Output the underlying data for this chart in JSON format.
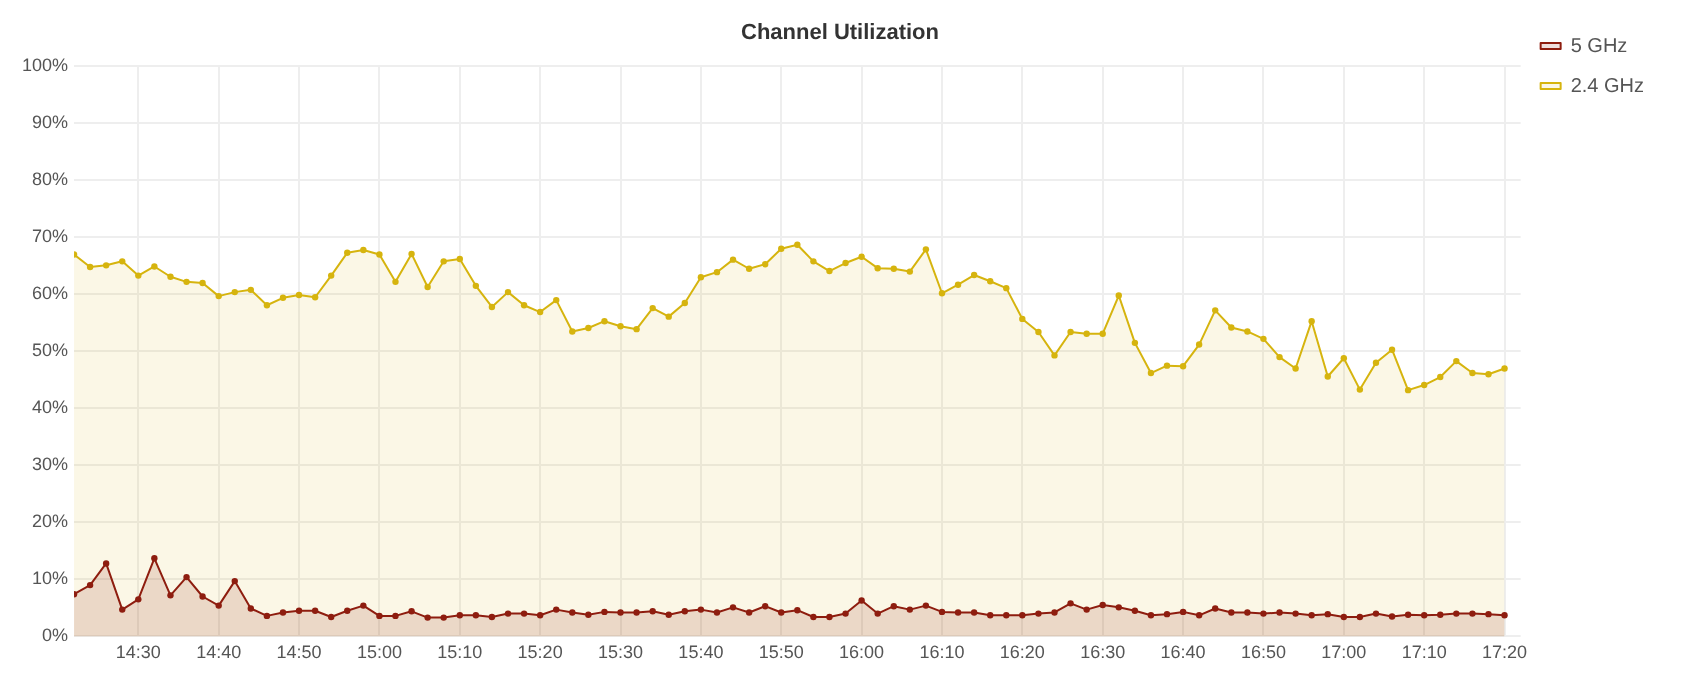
{
  "chart_data": {
    "type": "area",
    "title": "Channel Utilization",
    "x": [
      14.3667,
      14.4,
      14.4333,
      14.4667,
      14.5,
      14.5333,
      14.5667,
      14.6,
      14.6333,
      14.6667,
      14.7,
      14.7333,
      14.7667,
      14.8,
      14.8333,
      14.8667,
      14.9,
      14.9333,
      14.9667,
      15,
      15.0333,
      15.0667,
      15.1,
      15.1333,
      15.1667,
      15.2,
      15.2333,
      15.2667,
      15.3,
      15.3333,
      15.3667,
      15.4,
      15.4333,
      15.4667,
      15.5,
      15.5333,
      15.5667,
      15.6,
      15.6333,
      15.6667,
      15.7,
      15.7333,
      15.7667,
      15.8,
      15.8333,
      15.8667,
      15.9,
      15.9333,
      15.9667,
      16,
      16.0333,
      16.0667,
      16.1,
      16.1333,
      16.1667,
      16.2,
      16.2333,
      16.2667,
      16.3,
      16.3333,
      16.3667,
      16.4,
      16.4333,
      16.4667,
      16.5,
      16.5333,
      16.5667,
      16.6,
      16.6333,
      16.6667,
      16.7,
      16.7333,
      16.7667,
      16.8,
      16.8333,
      16.8667,
      16.9,
      16.9333,
      16.9667,
      17,
      17.0333,
      17.0667,
      17.1,
      17.1333,
      17.1667,
      17.2,
      17.2333,
      17.2667,
      17.3,
      17.3333
    ],
    "series": [
      {
        "name": "5 GHz",
        "color": "#8e1d0f",
        "values": [
          7.4,
          9,
          12.8,
          4.7,
          6.5,
          13.7,
          7.2,
          10.4,
          7,
          5.4,
          9.7,
          4.9,
          3.6,
          4.2,
          4.5,
          4.5,
          3.4,
          4.5,
          5.4,
          3.6,
          3.6,
          4.4,
          3.3,
          3.3,
          3.7,
          3.7,
          3.4,
          4,
          4,
          3.7,
          4.7,
          4.2,
          3.8,
          4.3,
          4.2,
          4.2,
          4.4,
          3.8,
          4.4,
          4.7,
          4.2,
          5.1,
          4.2,
          5.3,
          4.2,
          4.6,
          3.4,
          3.4,
          4,
          6.3,
          4,
          5.3,
          4.7,
          5.4,
          4.3,
          4.2,
          4.2,
          3.7,
          3.7,
          3.7,
          4,
          4.2,
          5.8,
          4.7,
          5.5,
          5.1,
          4.5,
          3.7,
          3.9,
          4.3,
          3.7,
          4.9,
          4.2,
          4.2,
          4,
          4.2,
          4,
          3.7,
          3.9,
          3.4,
          3.4,
          4,
          3.5,
          3.8,
          3.7,
          3.8,
          4,
          4,
          3.9,
          3.7
        ]
      },
      {
        "name": "2.4 GHz",
        "color": "#d6b40e",
        "values": [
          67,
          64.8,
          65.1,
          65.8,
          63.3,
          64.9,
          63.1,
          62.2,
          62,
          59.7,
          60.4,
          60.8,
          58.1,
          59.4,
          59.9,
          59.5,
          63.3,
          67.3,
          67.8,
          67,
          62.2,
          67.1,
          61.3,
          65.8,
          66.2,
          61.5,
          57.8,
          60.4,
          58.1,
          56.9,
          59,
          53.5,
          54.1,
          55.3,
          54.4,
          53.9,
          57.6,
          56.1,
          58.5,
          63,
          63.9,
          66.1,
          64.5,
          65.3,
          68,
          68.7,
          65.8,
          64.1,
          65.5,
          66.6,
          64.6,
          64.5,
          64,
          67.9,
          60.2,
          61.7,
          63.4,
          62.3,
          61.1,
          55.7,
          53.4,
          49.3,
          53.4,
          53.1,
          53.1,
          59.8,
          51.5,
          46.2,
          47.5,
          47.4,
          51.2,
          57.2,
          54.2,
          53.5,
          52.2,
          49,
          47,
          55.3,
          45.6,
          48.8,
          43.3,
          48,
          50.3,
          43.2,
          44.1,
          45.5,
          48.3,
          46.2,
          46,
          47
        ]
      }
    ],
    "xlim": [
      14.3667,
      17.3667
    ],
    "xticks": [
      {
        "value": 14.5,
        "label": "14:30"
      },
      {
        "value": 14.6667,
        "label": "14:40"
      },
      {
        "value": 14.8333,
        "label": "14:50"
      },
      {
        "value": 15,
        "label": "15:00"
      },
      {
        "value": 15.1667,
        "label": "15:10"
      },
      {
        "value": 15.3333,
        "label": "15:20"
      },
      {
        "value": 15.5,
        "label": "15:30"
      },
      {
        "value": 15.6667,
        "label": "15:40"
      },
      {
        "value": 15.8333,
        "label": "15:50"
      },
      {
        "value": 16,
        "label": "16:00"
      },
      {
        "value": 16.1667,
        "label": "16:10"
      },
      {
        "value": 16.3333,
        "label": "16:20"
      },
      {
        "value": 16.5,
        "label": "16:30"
      },
      {
        "value": 16.6667,
        "label": "16:40"
      },
      {
        "value": 16.8333,
        "label": "16:50"
      },
      {
        "value": 17,
        "label": "17:00"
      },
      {
        "value": 17.1667,
        "label": "17:10"
      },
      {
        "value": 17.3333,
        "label": "17:20"
      }
    ],
    "ylim": [
      0,
      100
    ],
    "yticks": [
      {
        "value": 0,
        "label": "0%"
      },
      {
        "value": 10,
        "label": "10%"
      },
      {
        "value": 20,
        "label": "20%"
      },
      {
        "value": 30,
        "label": "30%"
      },
      {
        "value": 40,
        "label": "40%"
      },
      {
        "value": 50,
        "label": "50%"
      },
      {
        "value": 60,
        "label": "60%"
      },
      {
        "value": 70,
        "label": "70%"
      },
      {
        "value": 80,
        "label": "80%"
      },
      {
        "value": 90,
        "label": "90%"
      },
      {
        "value": 100,
        "label": "100%"
      }
    ],
    "grid": true,
    "legend": "top right",
    "marker": "circle",
    "line_style": "solid"
  }
}
